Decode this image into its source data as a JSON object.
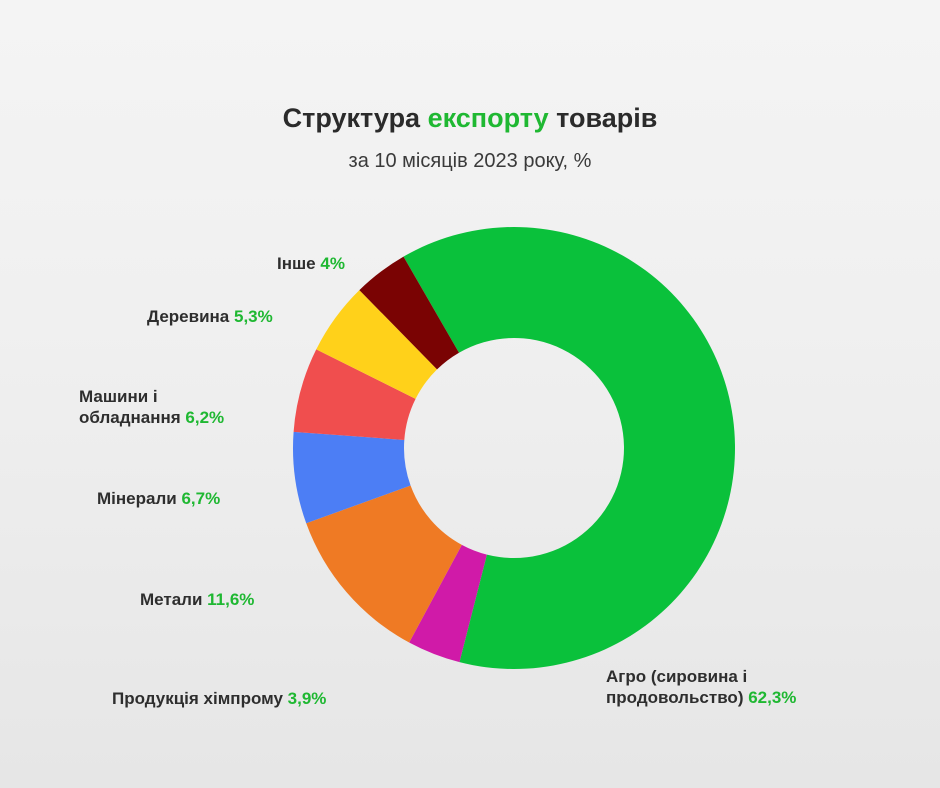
{
  "header": {
    "title_part1": "Структура ",
    "title_accent": "експорту",
    "title_part2": " товарів",
    "subtitle": "за 10 місяців 2023 року, %"
  },
  "colors": {
    "accent": "#1fb832",
    "text": "#2e2e2e"
  },
  "chart_data": {
    "type": "pie",
    "donut": true,
    "title": "Структура експорту товарів",
    "subtitle": "за 10 місяців 2023 року, %",
    "slices": [
      {
        "label": "Агро (сировина і продовольство)",
        "value": 62.3,
        "value_label": "62,3%",
        "color": "#0ac13b"
      },
      {
        "label": "Продукція хімпрому",
        "value": 3.9,
        "value_label": "3,9%",
        "color": "#d01aa8"
      },
      {
        "label": "Метали",
        "value": 11.6,
        "value_label": "11,6%",
        "color": "#ef7a24"
      },
      {
        "label": "Мінерали",
        "value": 6.7,
        "value_label": "6,7%",
        "color": "#4c7ef5"
      },
      {
        "label": "Машини і обладнання",
        "value": 6.2,
        "value_label": "6,2%",
        "color": "#f04e4e"
      },
      {
        "label": "Деревина",
        "value": 5.3,
        "value_label": "5,3%",
        "color": "#ffd11a"
      },
      {
        "label": "Інше",
        "value": 4,
        "value_label": "4%",
        "color": "#7a0303"
      }
    ]
  },
  "labels": {
    "agro_line1": "Агро (сировина і",
    "agro_line2": "продовольство)",
    "agro_value": "62,3%",
    "chem": "Продукція хімпрому",
    "chem_value": "3,9%",
    "metals": "Метали",
    "metals_value": "11,6%",
    "minerals": "Мінерали",
    "minerals_value": "6,7%",
    "machines_line1": "Машини і",
    "machines_line2": "обладнання",
    "machines_value": "6,2%",
    "wood": "Деревина",
    "wood_value": "5,3%",
    "other": "Інше",
    "other_value": "4%"
  }
}
